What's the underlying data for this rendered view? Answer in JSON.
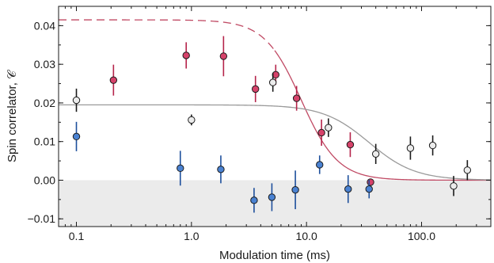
{
  "chart_data": {
    "type": "scatter",
    "xlabel": "Modulation time (ms)",
    "ylabel": "Spin correlator, 𝒞",
    "xscale": "log",
    "xlim": [
      0.07,
      400
    ],
    "ylim": [
      -0.012,
      0.045
    ],
    "grid": false,
    "legend": "none",
    "shaded_region": {
      "y_from": -0.012,
      "y_to": 0.0,
      "color": "#ebebeb"
    },
    "x_ticks": [
      {
        "value": 0.1,
        "label": "0.1"
      },
      {
        "value": 1.0,
        "label": "1.0"
      },
      {
        "value": 10.0,
        "label": "10.0"
      },
      {
        "value": 100.0,
        "label": "100.0"
      }
    ],
    "y_ticks": [
      {
        "value": -0.01,
        "label": "−0.01"
      },
      {
        "value": 0.0,
        "label": "0.00"
      },
      {
        "value": 0.01,
        "label": "0.01"
      },
      {
        "value": 0.02,
        "label": "0.02"
      },
      {
        "value": 0.03,
        "label": "0.03"
      },
      {
        "value": 0.04,
        "label": "0.04"
      }
    ],
    "series": [
      {
        "color": "#d6426a",
        "error_color": "#b5244b",
        "points": [
          {
            "x": 0.21,
            "y": 0.0259,
            "err": 0.004
          },
          {
            "x": 0.9,
            "y": 0.0323,
            "err": 0.0034
          },
          {
            "x": 1.9,
            "y": 0.0321,
            "err": 0.0052
          },
          {
            "x": 3.6,
            "y": 0.0236,
            "err": 0.0034
          },
          {
            "x": 5.4,
            "y": 0.0273,
            "err": 0.0026
          },
          {
            "x": 8.2,
            "y": 0.0212,
            "err": 0.0032
          },
          {
            "x": 13.5,
            "y": 0.0123,
            "err": 0.0034
          },
          {
            "x": 24,
            "y": 0.0092,
            "err": 0.0032
          },
          {
            "x": 36,
            "y": -0.0005,
            "err": 0.0
          }
        ]
      },
      {
        "color": "#ececec",
        "error_color": "#1a1a1a",
        "points": [
          {
            "x": 0.1,
            "y": 0.0207,
            "err": 0.003
          },
          {
            "x": 1.0,
            "y": 0.0156,
            "err": 0.0014
          },
          {
            "x": 5.1,
            "y": 0.0253,
            "err": 0.0024
          },
          {
            "x": 15.5,
            "y": 0.0136,
            "err": 0.0024
          },
          {
            "x": 40,
            "y": 0.0068,
            "err": 0.0026
          },
          {
            "x": 80,
            "y": 0.0083,
            "err": 0.003
          },
          {
            "x": 125,
            "y": 0.009,
            "err": 0.0026
          },
          {
            "x": 190,
            "y": -0.0015,
            "err": 0.0026
          },
          {
            "x": 250,
            "y": 0.0026,
            "err": 0.0026
          }
        ]
      },
      {
        "color": "#4a82d2",
        "error_color": "#1d4f9c",
        "points": [
          {
            "x": 0.1,
            "y": 0.0113,
            "err": 0.0038
          },
          {
            "x": 0.8,
            "y": 0.0031,
            "err": 0.0045
          },
          {
            "x": 1.8,
            "y": 0.0028,
            "err": 0.0036
          },
          {
            "x": 3.5,
            "y": -0.0052,
            "err": 0.0032
          },
          {
            "x": 5.0,
            "y": -0.0044,
            "err": 0.0036
          },
          {
            "x": 8.0,
            "y": -0.0025,
            "err": 0.005
          },
          {
            "x": 13.0,
            "y": 0.004,
            "err": 0.0024
          },
          {
            "x": 23.0,
            "y": -0.0023,
            "err": 0.0036
          },
          {
            "x": 35.0,
            "y": -0.0023,
            "err": 0.0024
          }
        ]
      }
    ],
    "fit_curves": [
      {
        "color": "#c04a64",
        "form": "sigmoid",
        "amplitude": 0.0415,
        "x_half": 9.0,
        "width_decades": 0.16,
        "dashed_below_x": 5.2
      },
      {
        "color": "#9a9a9a",
        "form": "sigmoid",
        "amplitude": 0.0195,
        "x_half": 35.0,
        "width_decades": 0.2,
        "dashed_below_x": 0
      }
    ]
  }
}
